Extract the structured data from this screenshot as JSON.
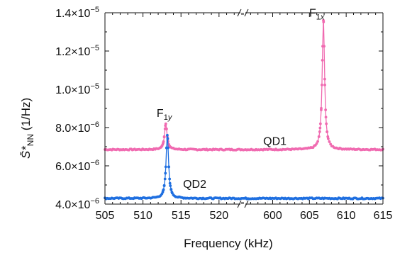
{
  "chart_data": {
    "type": "scatter",
    "xlabel": "Frequency (kHz)",
    "ylabel": "S̄*NN (1/Hz)",
    "ylabel_parts": {
      "sym": "S̄*",
      "sub": "NN",
      "unit": " (1/Hz)"
    },
    "ylim": [
      4e-06,
      1.4e-05
    ],
    "x_segments": [
      {
        "range": [
          505,
          523
        ],
        "ticks": [
          505,
          510,
          515,
          520
        ]
      },
      {
        "range": [
          596,
          615
        ],
        "ticks": [
          600,
          605,
          610,
          615
        ]
      }
    ],
    "y_ticks": [
      {
        "value": 4e-06,
        "mant": "4.0×10",
        "exp": "−6"
      },
      {
        "value": 6e-06,
        "mant": "6.0×10",
        "exp": "−6"
      },
      {
        "value": 8e-06,
        "mant": "8.0×10",
        "exp": "−6"
      },
      {
        "value": 1e-05,
        "mant": "1.0×10",
        "exp": "−5"
      },
      {
        "value": 1.2e-05,
        "mant": "1.2×10",
        "exp": "−5"
      },
      {
        "value": 1.4e-05,
        "mant": "1.4×10",
        "exp": "−5"
      }
    ],
    "series": [
      {
        "color": "#f06ab0",
        "baseline": 6.85e-06,
        "peaks": [
          {
            "x": 513.0,
            "y": 8.2e-06,
            "width": 0.2
          },
          {
            "x": 606.9,
            "y": 1.36e-05,
            "width": 0.2
          }
        ]
      },
      {
        "color": "#1f6fe0",
        "baseline": 4.3e-06,
        "peaks": [
          {
            "x": 513.2,
            "y": 7.6e-06,
            "width": 0.2
          }
        ]
      }
    ],
    "annotations": [
      {
        "text": "F",
        "sub": "1y",
        "x": 512.8,
        "y": 8.55e-06
      },
      {
        "text": "F",
        "sub": "1x",
        "x": 606.0,
        "y": 1.38e-05
      },
      {
        "text": "QD1",
        "sub": "",
        "x": 600.3,
        "y": 7.1e-06
      },
      {
        "text": "QD2",
        "sub": "",
        "x": 516.8,
        "y": 4.85e-06
      }
    ]
  }
}
